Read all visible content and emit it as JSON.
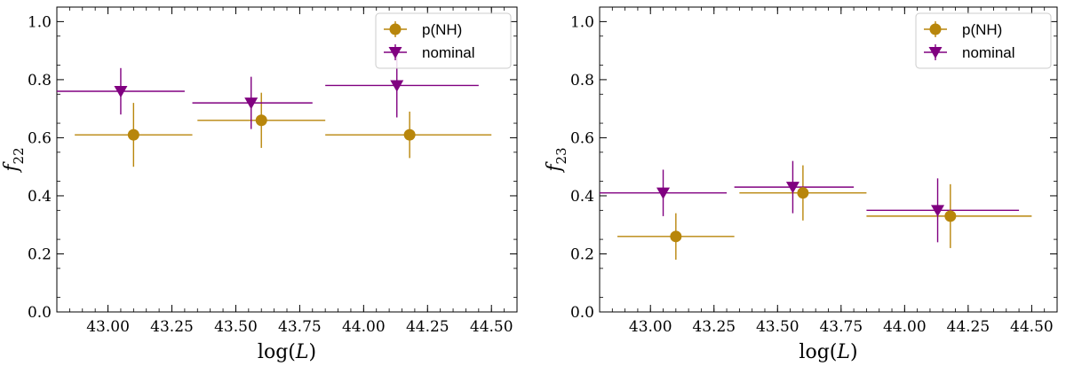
{
  "colors": {
    "pNH": "#b8860b",
    "nominal": "#800080",
    "axis": "#000000",
    "legend_border": "#cccccc"
  },
  "chart_data": [
    {
      "type": "scatter",
      "xlabel": "log(L)",
      "ylabel": "f22",
      "ylabel_main": "f",
      "ylabel_sub": "22",
      "xlim": [
        42.8,
        44.6
      ],
      "ylim": [
        0.0,
        1.05
      ],
      "xticks": [
        "43.00",
        "43.25",
        "43.50",
        "43.75",
        "44.00",
        "44.25",
        "44.50"
      ],
      "xtick_values": [
        43.0,
        43.25,
        43.5,
        43.75,
        44.0,
        44.25,
        44.5
      ],
      "yticks": [
        "0.0",
        "0.2",
        "0.4",
        "0.6",
        "0.8",
        "1.0"
      ],
      "ytick_values": [
        0.0,
        0.2,
        0.4,
        0.6,
        0.8,
        1.0
      ],
      "legend": {
        "placement": "top-right",
        "entries": [
          "p(NH)",
          "nominal"
        ]
      },
      "grid": false,
      "series": [
        {
          "name": "p(NH)",
          "marker": "circle",
          "color": "#b8860b",
          "points": [
            {
              "x": 43.1,
              "y": 0.61,
              "xmin": 42.87,
              "xmax": 43.33,
              "ymin": 0.5,
              "ymax": 0.72
            },
            {
              "x": 43.6,
              "y": 0.66,
              "xmin": 43.35,
              "xmax": 43.85,
              "ymin": 0.565,
              "ymax": 0.755
            },
            {
              "x": 44.18,
              "y": 0.61,
              "xmin": 43.85,
              "xmax": 44.5,
              "ymin": 0.53,
              "ymax": 0.69
            }
          ]
        },
        {
          "name": "nominal",
          "marker": "triangle-down",
          "color": "#800080",
          "points": [
            {
              "x": 43.05,
              "y": 0.76,
              "xmin": 42.8,
              "xmax": 43.3,
              "ymin": 0.68,
              "ymax": 0.84
            },
            {
              "x": 43.56,
              "y": 0.72,
              "xmin": 43.33,
              "xmax": 43.8,
              "ymin": 0.63,
              "ymax": 0.81
            },
            {
              "x": 44.13,
              "y": 0.78,
              "xmin": 43.85,
              "xmax": 44.45,
              "ymin": 0.67,
              "ymax": 0.89
            }
          ]
        }
      ]
    },
    {
      "type": "scatter",
      "xlabel": "log(L)",
      "ylabel": "f23",
      "ylabel_main": "f",
      "ylabel_sub": "23",
      "xlim": [
        42.8,
        44.6
      ],
      "ylim": [
        0.0,
        1.05
      ],
      "xticks": [
        "43.00",
        "43.25",
        "43.50",
        "43.75",
        "44.00",
        "44.25",
        "44.50"
      ],
      "xtick_values": [
        43.0,
        43.25,
        43.5,
        43.75,
        44.0,
        44.25,
        44.5
      ],
      "yticks": [
        "0.0",
        "0.2",
        "0.4",
        "0.6",
        "0.8",
        "1.0"
      ],
      "ytick_values": [
        0.0,
        0.2,
        0.4,
        0.6,
        0.8,
        1.0
      ],
      "legend": {
        "placement": "top-right",
        "entries": [
          "p(NH)",
          "nominal"
        ]
      },
      "grid": false,
      "series": [
        {
          "name": "p(NH)",
          "marker": "circle",
          "color": "#b8860b",
          "points": [
            {
              "x": 43.1,
              "y": 0.26,
              "xmin": 42.87,
              "xmax": 43.33,
              "ymin": 0.18,
              "ymax": 0.34
            },
            {
              "x": 43.6,
              "y": 0.41,
              "xmin": 43.35,
              "xmax": 43.85,
              "ymin": 0.315,
              "ymax": 0.505
            },
            {
              "x": 44.18,
              "y": 0.33,
              "xmin": 43.85,
              "xmax": 44.5,
              "ymin": 0.22,
              "ymax": 0.44
            }
          ]
        },
        {
          "name": "nominal",
          "marker": "triangle-down",
          "color": "#800080",
          "points": [
            {
              "x": 43.05,
              "y": 0.41,
              "xmin": 42.8,
              "xmax": 43.3,
              "ymin": 0.33,
              "ymax": 0.49
            },
            {
              "x": 43.56,
              "y": 0.43,
              "xmin": 43.33,
              "xmax": 43.8,
              "ymin": 0.34,
              "ymax": 0.52
            },
            {
              "x": 44.13,
              "y": 0.35,
              "xmin": 43.85,
              "xmax": 44.45,
              "ymin": 0.24,
              "ymax": 0.46
            }
          ]
        }
      ]
    }
  ]
}
